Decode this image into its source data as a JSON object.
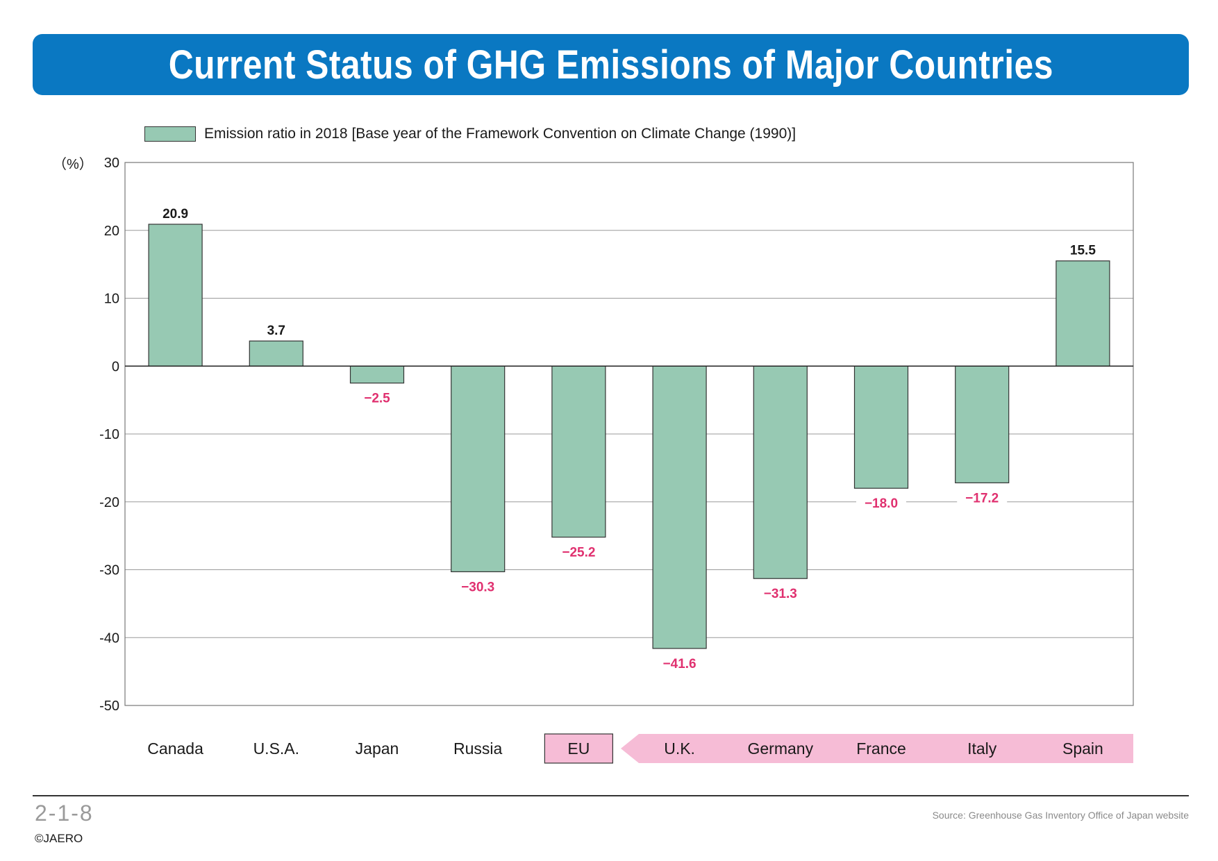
{
  "title": "Current Status of GHG Emissions of Major Countries",
  "legend_label": "Emission ratio in 2018 [Base year of the Framework Convention on Climate Change (1990)]",
  "unit_label": "（%）",
  "figure_number": "2-1-8",
  "copyright": "©JAERO",
  "source": "Source: Greenhouse Gas Inventory Office of Japan website",
  "colors": {
    "banner": "#0a78c2",
    "bar_fill": "#97c9b3",
    "negative_label": "#e0306f",
    "eu_highlight": "#f6bcd6"
  },
  "chart_data": {
    "type": "bar",
    "categories": [
      "Canada",
      "U.S.A.",
      "Japan",
      "Russia",
      "EU",
      "U.K.",
      "Germany",
      "France",
      "Italy",
      "Spain"
    ],
    "values": [
      20.9,
      3.7,
      -2.5,
      -30.3,
      -25.2,
      -41.6,
      -31.3,
      -18.0,
      -17.2,
      15.5
    ],
    "value_labels": [
      "20.9",
      "3.7",
      "−2.5",
      "−30.3",
      "−25.2",
      "−41.6",
      "−31.3",
      "−18.0",
      "−17.2",
      "15.5"
    ],
    "yticks": [
      30,
      20,
      10,
      0,
      -10,
      -20,
      -30,
      -40,
      -50
    ],
    "ytick_labels": [
      "30",
      "20",
      "10",
      "0",
      "-10",
      "-20",
      "-30",
      "-40",
      "-50"
    ],
    "ylim": [
      -50,
      30
    ],
    "grid": true,
    "ylabel": "（%）",
    "legend_position": "top-left",
    "highlight_group": [
      "EU",
      "U.K.",
      "Germany",
      "France",
      "Italy",
      "Spain"
    ]
  }
}
